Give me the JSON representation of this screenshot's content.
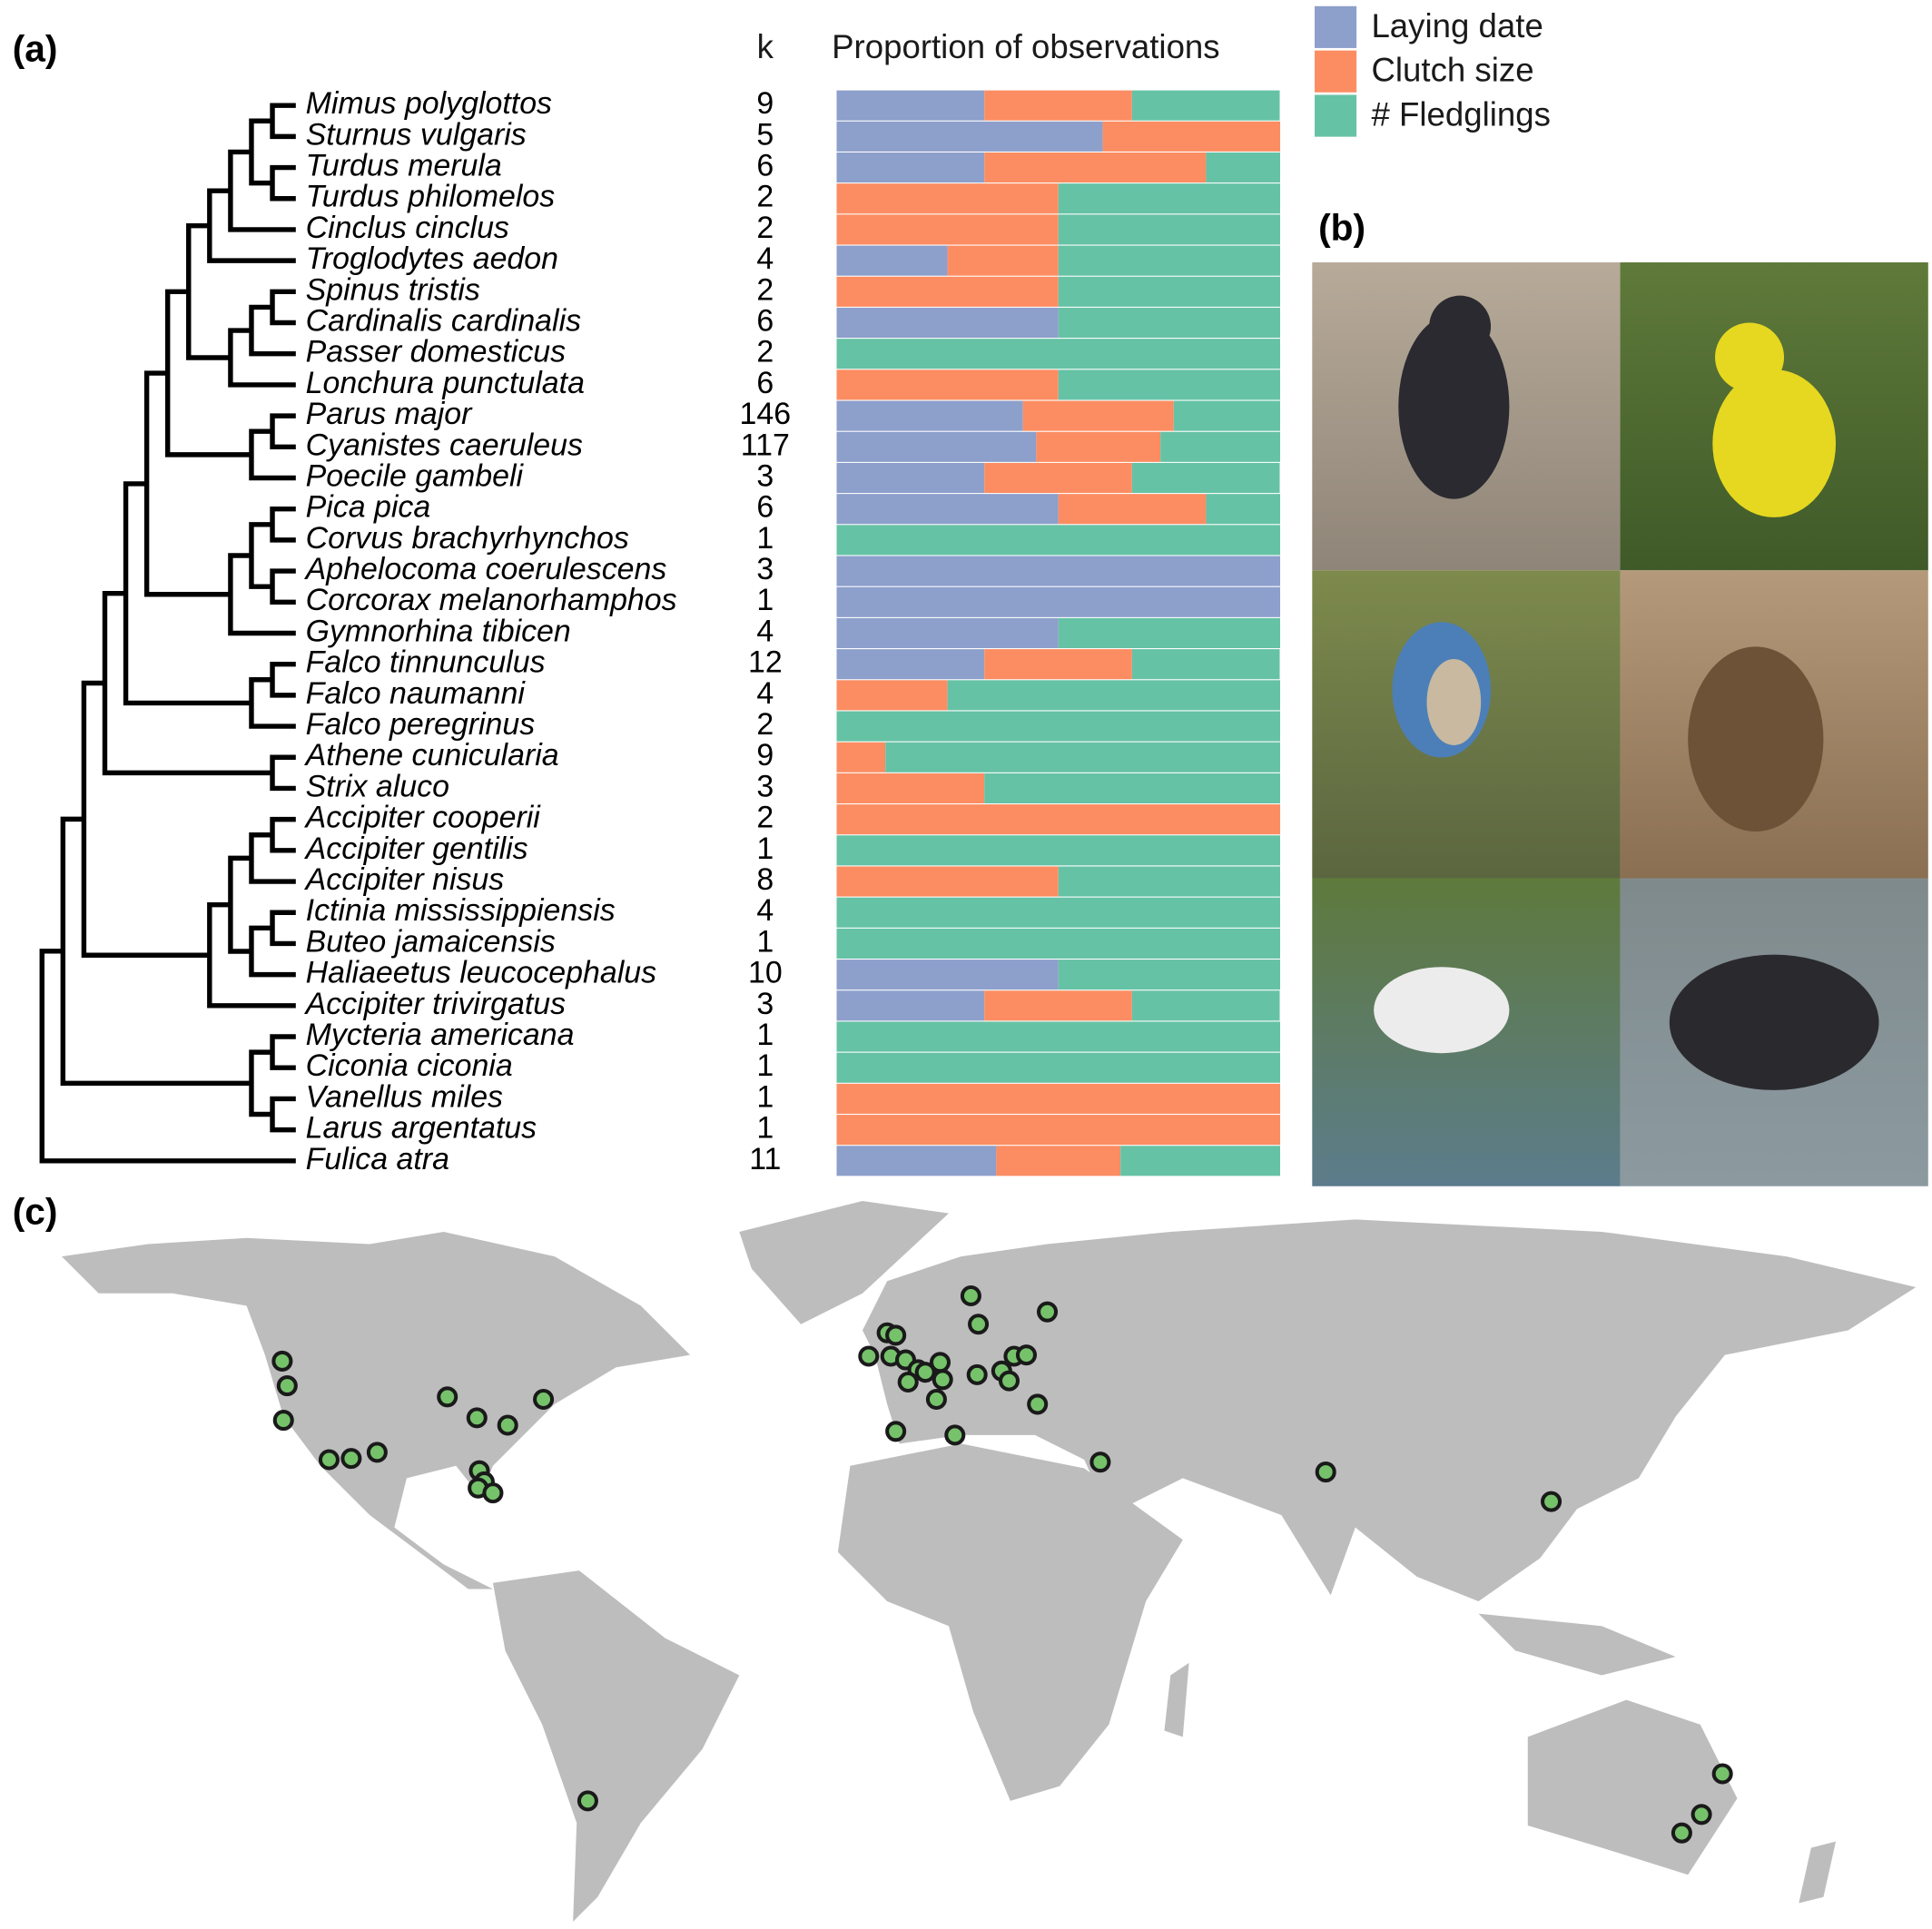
{
  "panels": {
    "a": "(a)",
    "b": "(b)",
    "c": "(c)"
  },
  "chart_data": {
    "type": "bar",
    "orientation": "horizontal",
    "stacked": true,
    "title": "Proportion of observations",
    "k_label": "k",
    "xlim": [
      0,
      1
    ],
    "categories": [
      "Mimus polyglottos",
      "Sturnus vulgaris",
      "Turdus merula",
      "Turdus philomelos",
      "Cinclus cinclus",
      "Troglodytes aedon",
      "Spinus tristis",
      "Cardinalis cardinalis",
      "Passer domesticus",
      "Lonchura punctulata",
      "Parus major",
      "Cyanistes caeruleus",
      "Poecile gambeli",
      "Pica pica",
      "Corvus brachyrhynchos",
      "Aphelocoma coerulescens",
      "Corcorax melanorhamphos",
      "Gymnorhina tibicen",
      "Falco tinnunculus",
      "Falco naumanni",
      "Falco peregrinus",
      "Athene cunicularia",
      "Strix aluco",
      "Accipiter cooperii",
      "Accipiter gentilis",
      "Accipiter nisus",
      "Ictinia mississippiensis",
      "Buteo jamaicensis",
      "Haliaeetus leucocephalus",
      "Accipiter trivirgatus",
      "Mycteria americana",
      "Ciconia ciconia",
      "Vanellus miles",
      "Larus argentatus",
      "Fulica atra"
    ],
    "k": [
      9,
      5,
      6,
      2,
      2,
      4,
      2,
      6,
      2,
      6,
      146,
      117,
      3,
      6,
      1,
      3,
      1,
      4,
      12,
      4,
      2,
      9,
      3,
      2,
      1,
      8,
      4,
      1,
      10,
      3,
      1,
      1,
      1,
      1,
      11
    ],
    "series": [
      {
        "name": "Laying date",
        "color": "#8d9fcb",
        "values": [
          0.333,
          0.6,
          0.333,
          0,
          0,
          0.25,
          0,
          0.5,
          0,
          0,
          0.42,
          0.45,
          0.333,
          0.5,
          0,
          1,
          1,
          0.5,
          0.333,
          0,
          0,
          0,
          0,
          0,
          0,
          0,
          0,
          0,
          0.5,
          0.333,
          0,
          0,
          0,
          0,
          0.36
        ]
      },
      {
        "name": "Clutch size",
        "color": "#fc8d62",
        "values": [
          0.333,
          0.4,
          0.5,
          0.5,
          0.5,
          0.25,
          0.5,
          0,
          0,
          0.5,
          0.34,
          0.28,
          0.333,
          0.333,
          0,
          0,
          0,
          0,
          0.333,
          0.25,
          0,
          0.11,
          0.333,
          1,
          0,
          0.5,
          0,
          0,
          0,
          0.333,
          0,
          0,
          1,
          1,
          0.28
        ]
      },
      {
        "name": "# Fledglings",
        "color": "#66c2a5",
        "values": [
          0.333,
          0,
          0.167,
          0.5,
          0.5,
          0.5,
          0.5,
          0.5,
          1,
          0.5,
          0.24,
          0.27,
          0.333,
          0.167,
          1,
          0,
          0,
          0.5,
          0.333,
          0.75,
          1,
          0.89,
          0.667,
          0,
          1,
          0.5,
          1,
          1,
          0.5,
          0.333,
          1,
          1,
          0,
          0,
          0.36
        ]
      }
    ]
  }
}
